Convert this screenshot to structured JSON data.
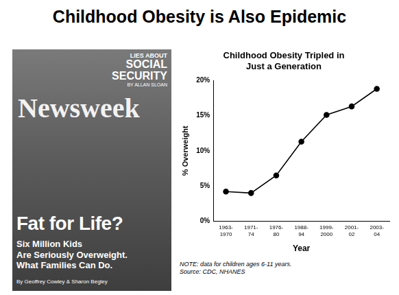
{
  "slide_title": "Childhood Obesity is Also Epidemic",
  "cover": {
    "masthead": "Newsweek",
    "teaser": [
      "LIES ABOUT",
      "SOCIAL",
      "SECURITY",
      "BY ALLAN SLOAN"
    ],
    "headline": "Fat for Life?",
    "deck": [
      "Six Million Kids",
      "Are Seriously Overweight.",
      "What Families Can Do."
    ],
    "byline": "By Geoffrey Cowley & Sharon Begley"
  },
  "chart_data": {
    "type": "line",
    "title": "Childhood Obesity Tripled in Just a Generation",
    "x_label": "Year",
    "y_label": "% Overweight",
    "categories": [
      "1963-1970",
      "1971-74",
      "1976-80",
      "1988-94",
      "1999-2000",
      "2001-02",
      "2003-04"
    ],
    "values": [
      4.2,
      4.0,
      6.5,
      11.3,
      15.1,
      16.3,
      18.8
    ],
    "color": "#000000",
    "marker": "circle",
    "line_style": "solid",
    "ylim": [
      0,
      20
    ],
    "yticks": [
      {
        "value": 0,
        "label": "0%"
      },
      {
        "value": 5,
        "label": "5%"
      },
      {
        "value": 10,
        "label": "10%"
      },
      {
        "value": 15,
        "label": "15%"
      },
      {
        "value": 20,
        "label": "20%"
      }
    ],
    "grid": false
  },
  "notes": [
    "NOTE: data for children ages 6-11 years.",
    "Source: CDC, NHANES"
  ]
}
